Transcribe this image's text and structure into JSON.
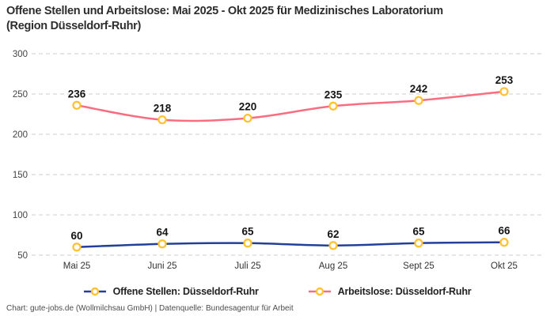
{
  "title": {
    "line1": "Offene Stellen und Arbeitslose: Mai 2025 - Okt 2025 für Medizinisches Laboratorium",
    "line2": "(Region Düsseldorf-Ruhr)"
  },
  "chart_data": {
    "type": "line",
    "categories": [
      "Mai 25",
      "Juni 25",
      "Juli 25",
      "Aug 25",
      "Sept 25",
      "Okt 25"
    ],
    "series": [
      {
        "name": "Offene Stellen: Düsseldorf-Ruhr",
        "values": [
          60,
          64,
          65,
          62,
          65,
          66
        ],
        "color": "#22409A"
      },
      {
        "name": "Arbeitslose: Düsseldorf-Ruhr",
        "values": [
          236,
          218,
          220,
          235,
          242,
          253
        ],
        "color": "#F96D80"
      }
    ],
    "marker_color": "#FFC233",
    "marker_fill": "#FFFFFF",
    "y_ticks": [
      300,
      250,
      200,
      150,
      100,
      50
    ],
    "ylim": [
      50,
      310
    ],
    "grid": "horizontal-dashed",
    "grid_color": "#CCCCCC",
    "legend_position": "bottom",
    "line_style": "smooth",
    "data_labels": true
  },
  "footer": {
    "text": "Chart: gute-jobs.de (Wollmilchsau GmbH) | Datenquelle: Bundesagentur für Arbeit"
  }
}
